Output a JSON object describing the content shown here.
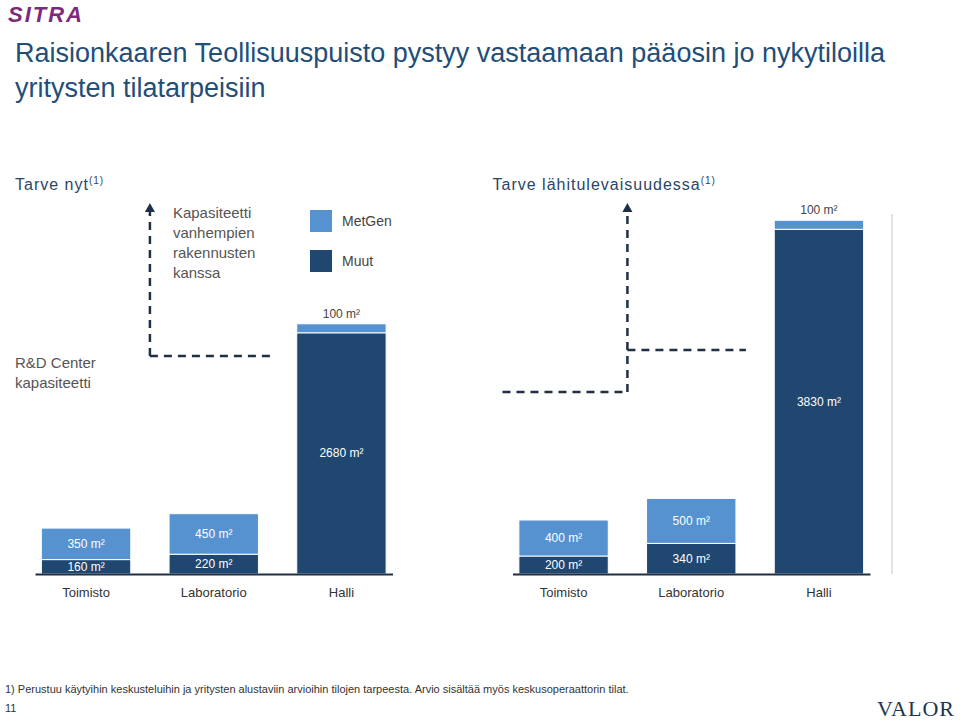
{
  "chart_data": {
    "type": "bar",
    "stacked": true,
    "title": "Raisionkaaren Teollisuuspuisto pystyy vastaamaan pääosin jo nykytiloilla yritysten tilatarpeisiin",
    "groups": [
      {
        "label": "Tarve nyt",
        "note": "(1)"
      },
      {
        "label": "Tarve lähitulevaisuudessa",
        "note": "(1)"
      }
    ],
    "categories": [
      "Toimisto",
      "Laboratorio",
      "Halli",
      "Toimisto",
      "Laboratorio",
      "Halli"
    ],
    "series": [
      {
        "name": "MetGen",
        "color": "#5592cf",
        "values": [
          350,
          450,
          100,
          400,
          500,
          100
        ],
        "value_labels": [
          "350 m²",
          "450 m²",
          "100 m²",
          "400 m²",
          "500 m²",
          "100 m²"
        ]
      },
      {
        "name": "Muut",
        "color": "#1f4770",
        "values": [
          160,
          220,
          2680,
          200,
          340,
          3830
        ],
        "value_labels": [
          "160 m²",
          "220 m²",
          "2680 m²",
          "200 m²",
          "340 m²",
          "3830 m²"
        ]
      }
    ],
    "annotations": [
      "Kapasiteetti vanhempien rakennusten kanssa",
      "R&D Center kapasiteetti"
    ],
    "footnote": "1) Perustuu käytyihin keskusteluihin ja yritysten alustaviin arvioihin tilojen tarpeesta. Arvio sisältää myös keskusoperaattorin tilat.",
    "page_number": "11",
    "logos": [
      "SITRA",
      "VALOR"
    ],
    "ylim": [
      0,
      4000
    ],
    "tick_labels": "x",
    "data_labels": true,
    "legend": "top",
    "grid": false
  }
}
